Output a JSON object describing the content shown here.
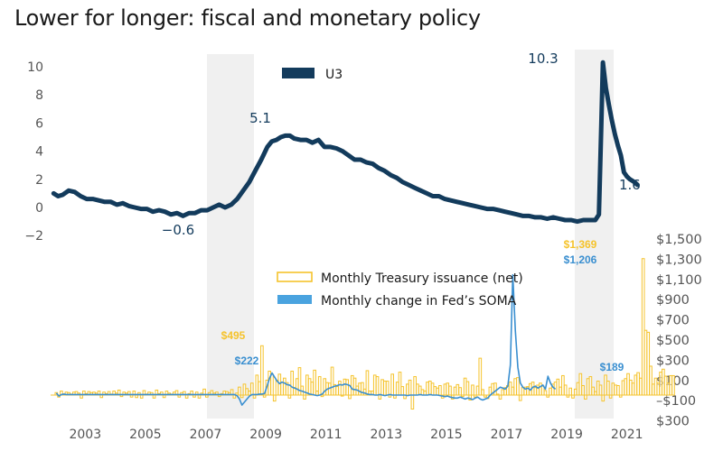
{
  "title": "Lower for longer: fiscal and monetary policy",
  "colors": {
    "u3": "#133b5c",
    "treasury": "#f5c32c",
    "soma": "#3a8fd0",
    "recession": "#f0f0f0"
  },
  "chart_data": [
    {
      "type": "line",
      "title": "Lower for longer: fiscal and monetary policy",
      "legend": [
        {
          "name": "U3",
          "placement": "top-center"
        }
      ],
      "xlabel": "",
      "ylabel": "",
      "ylim": [
        -2,
        10
      ],
      "yticks": [
        "10",
        "8",
        "6",
        "4",
        "2",
        "0",
        "-2"
      ],
      "ytick_values": [
        10,
        8,
        6,
        4,
        2,
        0,
        -2
      ],
      "xlim": [
        2002.0,
        2020.6
      ],
      "recessions": [
        [
          2007.95,
          2009.5
        ],
        [
          2020.1,
          2021.4
        ]
      ],
      "series": [
        {
          "name": "U3",
          "x": [
            2002.0,
            2002.15,
            2002.3,
            2002.5,
            2002.7,
            2002.9,
            2003.1,
            2003.3,
            2003.5,
            2003.7,
            2003.9,
            2004.1,
            2004.3,
            2004.5,
            2004.7,
            2004.9,
            2005.1,
            2005.3,
            2005.5,
            2005.7,
            2005.9,
            2006.1,
            2006.3,
            2006.5,
            2006.7,
            2006.9,
            2007.1,
            2007.3,
            2007.5,
            2007.7,
            2007.9,
            2008.1,
            2008.3,
            2008.5,
            2008.7,
            2008.9,
            2009.1,
            2009.25,
            2009.4,
            2009.55,
            2009.7,
            2009.85,
            2010.0,
            2010.2,
            2010.4,
            2010.6,
            2010.8,
            2011.0,
            2011.2,
            2011.4,
            2011.6,
            2011.8,
            2012.0,
            2012.2,
            2012.4,
            2012.6,
            2012.8,
            2013.0,
            2013.2,
            2013.4,
            2013.6,
            2013.8,
            2014.0,
            2014.2,
            2014.4,
            2014.6,
            2014.8,
            2015.0,
            2015.2,
            2015.4,
            2015.6,
            2015.8,
            2016.0,
            2016.2,
            2016.4,
            2016.6,
            2016.8,
            2017.0,
            2017.2,
            2017.4,
            2017.6,
            2017.8,
            2018.0,
            2018.2,
            2018.4,
            2018.6,
            2018.8,
            2019.0,
            2019.2,
            2019.4,
            2019.6,
            2019.8,
            2020.0,
            2020.12,
            2020.2,
            2020.25,
            2020.35,
            2020.45,
            2020.55,
            2020.65,
            2020.75,
            2020.85,
            2020.95,
            2021.05,
            2021.15,
            2021.3,
            2021.4
          ],
          "values": [
            1.0,
            0.8,
            0.9,
            1.2,
            1.1,
            0.8,
            0.6,
            0.6,
            0.5,
            0.4,
            0.4,
            0.2,
            0.3,
            0.1,
            0.0,
            -0.1,
            -0.1,
            -0.3,
            -0.2,
            -0.3,
            -0.5,
            -0.4,
            -0.6,
            -0.4,
            -0.4,
            -0.2,
            -0.2,
            0.0,
            0.2,
            0.0,
            0.2,
            0.6,
            1.2,
            1.8,
            2.6,
            3.4,
            4.3,
            4.7,
            4.8,
            5.0,
            5.1,
            5.1,
            4.9,
            4.8,
            4.8,
            4.6,
            4.8,
            4.3,
            4.3,
            4.2,
            4.0,
            3.7,
            3.4,
            3.4,
            3.2,
            3.1,
            2.8,
            2.6,
            2.3,
            2.1,
            1.8,
            1.6,
            1.4,
            1.2,
            1.0,
            0.8,
            0.8,
            0.6,
            0.5,
            0.4,
            0.3,
            0.2,
            0.1,
            0.0,
            -0.1,
            -0.1,
            -0.2,
            -0.3,
            -0.4,
            -0.5,
            -0.6,
            -0.6,
            -0.7,
            -0.7,
            -0.8,
            -0.7,
            -0.8,
            -0.9,
            -0.9,
            -1.0,
            -0.9,
            -0.9,
            -0.9,
            -0.5,
            6.0,
            10.3,
            8.5,
            7.3,
            6.2,
            5.2,
            4.4,
            3.7,
            2.5,
            2.2,
            2.0,
            1.8,
            1.6
          ]
        }
      ],
      "annotations": [
        {
          "text": "10.3",
          "x": 2020.25,
          "y": 10.3
        },
        {
          "text": "5.1",
          "x": 2009.75,
          "y": 5.1
        },
        {
          "text": "-0.6",
          "x": 2006.3,
          "y": -0.6
        },
        {
          "text": "1.6",
          "x": 2021.4,
          "y": 1.6
        }
      ]
    },
    {
      "type": "bar",
      "title": "",
      "legend": [
        {
          "name": "Monthly Treasury issuance (net)",
          "placement": "center"
        },
        {
          "name": "Monthly change in Fed’s SOMA",
          "placement": "center"
        }
      ],
      "xlabel": "",
      "ylabel": "",
      "ylim": [
        -100,
        1500
      ],
      "yticks": [
        "$1,500",
        "$1,300",
        "$1,100",
        "$900",
        "$700",
        "$500",
        "$300",
        "$100",
        "–$100",
        "$300"
      ],
      "xticks": [
        "2003",
        "2005",
        "2007",
        "2009",
        "2011",
        "2013",
        "2015",
        "2017",
        "2019",
        "2021"
      ],
      "xlim": [
        2002.0,
        2021.5
      ],
      "series": [
        {
          "name": "Monthly Treasury issuance (net)",
          "type": "bar",
          "x_start": 2002.0,
          "x_step_months": 1,
          "values": [
            25,
            -20,
            40,
            10,
            30,
            25,
            10,
            30,
            35,
            20,
            -30,
            40,
            15,
            35,
            25,
            30,
            20,
            40,
            -25,
            30,
            15,
            35,
            10,
            40,
            20,
            50,
            -15,
            30,
            20,
            35,
            -20,
            40,
            -25,
            25,
            -30,
            45,
            10,
            30,
            25,
            -30,
            50,
            15,
            30,
            -25,
            40,
            20,
            10,
            30,
            45,
            -20,
            25,
            35,
            -30,
            15,
            40,
            -20,
            30,
            -30,
            20,
            60,
            -20,
            25,
            45,
            20,
            30,
            -15,
            15,
            40,
            35,
            25,
            55,
            -30,
            20,
            80,
            -25,
            110,
            65,
            40,
            120,
            -30,
            200,
            135,
            495,
            -20,
            150,
            240,
            210,
            -60,
            150,
            210,
            130,
            170,
            125,
            -30,
            240,
            75,
            165,
            275,
            90,
            -40,
            200,
            165,
            130,
            250,
            40,
            185,
            -15,
            165,
            125,
            120,
            280,
            105,
            85,
            140,
            -10,
            160,
            155,
            -35,
            195,
            170,
            90,
            120,
            125,
            60,
            245,
            40,
            40,
            200,
            185,
            -40,
            155,
            140,
            140,
            -20,
            210,
            -30,
            130,
            230,
            85,
            -35,
            110,
            150,
            -140,
            185,
            110,
            90,
            55,
            40,
            130,
            140,
            120,
            85,
            70,
            95,
            -30,
            110,
            120,
            90,
            -40,
            80,
            105,
            75,
            -15,
            170,
            135,
            -50,
            100,
            -20,
            90,
            370,
            55,
            -20,
            -35,
            80,
            115,
            120,
            10,
            -40,
            55,
            75,
            95,
            130,
            80,
            165,
            175,
            -55,
            75,
            80,
            85,
            115,
            130,
            75,
            100,
            120,
            90,
            45,
            -20,
            70,
            110,
            130,
            160,
            80,
            195,
            100,
            -20,
            70,
            -30,
            60,
            125,
            215,
            95,
            -40,
            165,
            185,
            80,
            35,
            140,
            100,
            -60,
            200,
            140,
            -30,
            120,
            100,
            95,
            -20,
            145,
            165,
            215,
            150,
            120,
            200,
            225,
            170,
            1369,
            650,
            630,
            290,
            110,
            170,
            120,
            230,
            260,
            190,
            120,
            195,
            195
          ]
        },
        {
          "name": "Monthly change in Fed’s SOMA",
          "type": "line",
          "x_start": 2002.0,
          "x_step_months": 1,
          "values": [
            20,
            -10,
            5,
            10,
            5,
            5,
            5,
            5,
            5,
            5,
            5,
            5,
            5,
            5,
            5,
            5,
            5,
            5,
            5,
            5,
            5,
            5,
            5,
            5,
            5,
            5,
            5,
            5,
            5,
            5,
            5,
            5,
            5,
            5,
            5,
            5,
            5,
            5,
            5,
            5,
            5,
            5,
            5,
            5,
            5,
            5,
            5,
            5,
            5,
            5,
            5,
            5,
            5,
            5,
            5,
            5,
            5,
            5,
            5,
            5,
            5,
            5,
            5,
            5,
            5,
            5,
            5,
            5,
            5,
            5,
            5,
            5,
            -5,
            -40,
            -100,
            -70,
            -40,
            -10,
            5,
            5,
            5,
            10,
            10,
            15,
            90,
            170,
            222,
            180,
            140,
            115,
            130,
            120,
            105,
            100,
            80,
            70,
            60,
            45,
            40,
            30,
            20,
            10,
            5,
            0,
            -5,
            0,
            10,
            40,
            60,
            70,
            80,
            90,
            95,
            105,
            100,
            110,
            105,
            95,
            60,
            55,
            50,
            35,
            25,
            20,
            10,
            5,
            5,
            0,
            0,
            5,
            0,
            -5,
            0,
            5,
            0,
            0,
            0,
            0,
            0,
            0,
            -5,
            0,
            0,
            0,
            0,
            5,
            0,
            0,
            0,
            5,
            0,
            0,
            0,
            -5,
            -10,
            -15,
            -10,
            -20,
            -25,
            -30,
            -30,
            -20,
            -30,
            -40,
            -30,
            -35,
            -45,
            -30,
            -20,
            -40,
            -50,
            -40,
            -30,
            0,
            20,
            40,
            60,
            80,
            70,
            60,
            90,
            300,
            1206,
            650,
            280,
            120,
            80,
            60,
            70,
            50,
            80,
            90,
            70,
            85,
            100,
            60,
            189,
            120,
            80,
            60
          ]
        }
      ],
      "annotations": [
        {
          "text": "$1,369",
          "series": "Monthly Treasury issuance (net)",
          "value": 1369
        },
        {
          "text": "$1,206",
          "series": "Monthly change in Fed’s SOMA",
          "value": 1206
        },
        {
          "text": "$495",
          "series": "Monthly Treasury issuance (net)",
          "value": 495
        },
        {
          "text": "$222",
          "series": "Monthly change in Fed’s SOMA",
          "value": 222
        },
        {
          "text": "$189",
          "series": "Monthly change in Fed’s SOMA",
          "value": 189
        }
      ]
    }
  ]
}
